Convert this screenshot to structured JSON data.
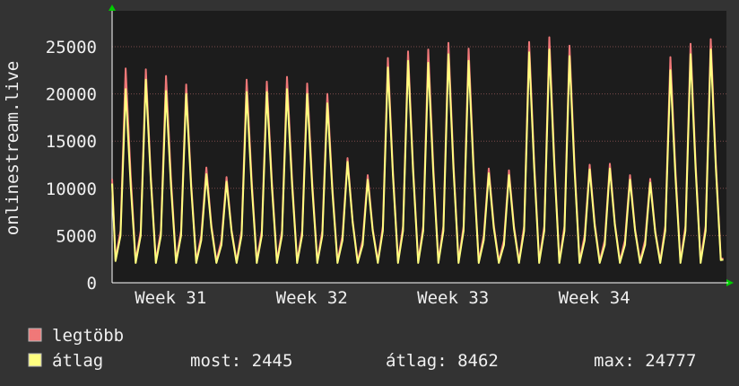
{
  "chart_data": {
    "type": "line",
    "y_label": "onlinestream.live",
    "xlim": [
      0,
      30.45
    ],
    "xticks": [
      {
        "value": 2.9,
        "label": "Week 31"
      },
      {
        "value": 9.9,
        "label": "Week 32"
      },
      {
        "value": 16.9,
        "label": "Week 33"
      },
      {
        "value": 23.9,
        "label": "Week 34"
      }
    ],
    "ylim": [
      0,
      28800
    ],
    "yticks": [
      0,
      5000,
      10000,
      15000,
      20000,
      25000
    ],
    "grid": true,
    "x": [
      0,
      0.17,
      0.42,
      0.67,
      0.92,
      1.17,
      1.42,
      1.67,
      1.92,
      2.17,
      2.42,
      2.67,
      2.92,
      3.17,
      3.42,
      3.67,
      3.92,
      4.17,
      4.42,
      4.67,
      4.92,
      5.17,
      5.42,
      5.67,
      5.92,
      6.17,
      6.42,
      6.67,
      6.92,
      7.17,
      7.42,
      7.67,
      7.92,
      8.17,
      8.42,
      8.67,
      8.92,
      9.17,
      9.42,
      9.67,
      9.92,
      10.17,
      10.42,
      10.67,
      10.92,
      11.17,
      11.42,
      11.67,
      11.92,
      12.17,
      12.42,
      12.67,
      12.92,
      13.17,
      13.42,
      13.67,
      13.92,
      14.17,
      14.42,
      14.67,
      14.92,
      15.17,
      15.42,
      15.67,
      15.92,
      16.17,
      16.42,
      16.67,
      16.92,
      17.17,
      17.42,
      17.67,
      17.92,
      18.17,
      18.42,
      18.67,
      18.92,
      19.17,
      19.42,
      19.67,
      19.92,
      20.17,
      20.42,
      20.67,
      20.92,
      21.17,
      21.42,
      21.67,
      21.92,
      22.17,
      22.42,
      22.67,
      22.92,
      23.17,
      23.42,
      23.67,
      23.92,
      24.17,
      24.42,
      24.67,
      24.92,
      25.17,
      25.42,
      25.67,
      25.92,
      26.17,
      26.42,
      26.67,
      26.92,
      27.17,
      27.42,
      27.67,
      27.92,
      28.17,
      28.42,
      28.67,
      28.92,
      29.17,
      29.42,
      29.67,
      29.92,
      30.17,
      30.3
    ],
    "series": [
      {
        "name": "legtöbb",
        "color": "#f07878",
        "values": [
          11000,
          2500,
          5500,
          22700,
          11400,
          2300,
          5500,
          22600,
          11300,
          2300,
          5500,
          21900,
          11000,
          2300,
          5500,
          21000,
          10500,
          2300,
          5000,
          12200,
          6100,
          2300,
          4500,
          11200,
          5600,
          2300,
          5500,
          21500,
          10800,
          2300,
          5500,
          21300,
          10700,
          2300,
          5500,
          21800,
          10900,
          2300,
          5500,
          21100,
          10600,
          2300,
          5500,
          20000,
          10000,
          2300,
          5000,
          13200,
          6600,
          2300,
          4500,
          11400,
          5700,
          2300,
          6000,
          23800,
          11900,
          2300,
          6000,
          24500,
          12300,
          2300,
          6000,
          24700,
          12400,
          2300,
          6000,
          25400,
          12700,
          2300,
          6000,
          24800,
          12400,
          2300,
          5000,
          12100,
          6100,
          2300,
          4500,
          11900,
          6000,
          2300,
          6000,
          25500,
          12800,
          2300,
          6000,
          26000,
          13000,
          2300,
          6000,
          25100,
          12600,
          2300,
          5000,
          12500,
          6300,
          2300,
          4500,
          12600,
          6300,
          2300,
          4500,
          11400,
          5700,
          2300,
          4500,
          11000,
          5500,
          2300,
          6000,
          23900,
          12000,
          2300,
          6000,
          25300,
          12700,
          2300,
          6000,
          25800,
          12900,
          2600,
          2500
        ]
      },
      {
        "name": "átlag",
        "color": "#ffff80",
        "values": [
          10500,
          2300,
          5000,
          20500,
          10300,
          2100,
          5000,
          21500,
          10800,
          2100,
          5000,
          20300,
          10200,
          2100,
          5000,
          20000,
          10000,
          2100,
          4500,
          11500,
          5800,
          2100,
          4000,
          10700,
          5400,
          2100,
          5000,
          20200,
          10100,
          2100,
          5000,
          20200,
          10100,
          2100,
          5000,
          20500,
          10300,
          2100,
          5000,
          20000,
          10000,
          2100,
          5000,
          19000,
          9500,
          2100,
          4500,
          12800,
          6400,
          2100,
          4000,
          10900,
          5500,
          2100,
          5500,
          22800,
          11400,
          2100,
          5500,
          23500,
          11800,
          2100,
          5500,
          23300,
          11700,
          2100,
          5500,
          24200,
          12100,
          2100,
          5500,
          23500,
          11800,
          2100,
          4500,
          11600,
          5800,
          2100,
          4000,
          11400,
          5700,
          2100,
          5500,
          24400,
          12200,
          2100,
          5500,
          24700,
          12400,
          2100,
          5500,
          24000,
          12000,
          2100,
          4500,
          12000,
          6000,
          2100,
          4000,
          12100,
          6100,
          2100,
          4000,
          10900,
          5500,
          2100,
          4000,
          10600,
          5300,
          2100,
          5500,
          22500,
          11300,
          2100,
          5500,
          24200,
          12100,
          2100,
          5500,
          24700,
          12300,
          2400,
          2445
        ]
      }
    ],
    "stats": [
      "most: 2445",
      "átlag: 8462",
      "max: 24777"
    ]
  }
}
